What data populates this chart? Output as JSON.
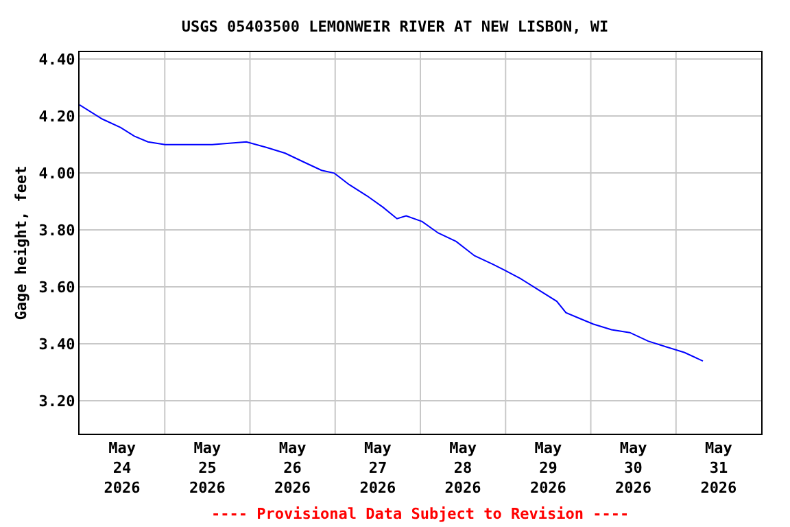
{
  "chart_data": {
    "type": "line",
    "title": "USGS 05403500 LEMONWEIR RIVER AT NEW LISBON, WI",
    "ylabel": "Gage height, feet",
    "annotations": [
      "---- Provisional Data Subject to Revision ----"
    ],
    "x": [
      "2026-05-24T00:00",
      "2026-05-24T06:25",
      "2026-05-24T11:35",
      "2026-05-24T15:25",
      "2026-05-24T19:15",
      "2026-05-25T00:05",
      "2026-05-25T13:20",
      "2026-05-25T23:00",
      "2026-05-26T04:45",
      "2026-05-26T09:55",
      "2026-05-26T15:00",
      "2026-05-26T20:10",
      "2026-05-26T23:45",
      "2026-05-27T03:55",
      "2026-05-27T09:00",
      "2026-05-27T13:30",
      "2026-05-27T17:25",
      "2026-05-27T20:00",
      "2026-05-28T00:30",
      "2026-05-28T05:00",
      "2026-05-28T10:05",
      "2026-05-28T15:15",
      "2026-05-28T20:25",
      "2026-05-28T23:35",
      "2026-05-29T04:10",
      "2026-05-29T09:15",
      "2026-05-29T14:25",
      "2026-05-29T17:00",
      "2026-05-29T20:50",
      "2026-05-30T00:40",
      "2026-05-30T05:50",
      "2026-05-30T11:00",
      "2026-05-30T16:10",
      "2026-05-30T21:15",
      "2026-05-31T02:25",
      "2026-05-31T07:35"
    ],
    "series": [
      {
        "color": "#0000ff",
        "values": [
          4.24,
          4.19,
          4.16,
          4.13,
          4.11,
          4.1,
          4.1,
          4.11,
          4.09,
          4.07,
          4.04,
          4.01,
          4.0,
          3.96,
          3.92,
          3.88,
          3.84,
          3.85,
          3.83,
          3.79,
          3.76,
          3.71,
          3.68,
          3.66,
          3.63,
          3.59,
          3.55,
          3.51,
          3.49,
          3.47,
          3.45,
          3.44,
          3.41,
          3.39,
          3.37,
          3.34
        ]
      }
    ],
    "xlim": [
      "2026-05-24T00:00",
      "2026-06-01T00:00"
    ],
    "xticks": [
      {
        "value": "2026-05-24T12:00",
        "label": "May\n24\n2026"
      },
      {
        "value": "2026-05-25T00:00",
        "label": null
      },
      {
        "value": "2026-05-25T12:00",
        "label": "May\n25\n2026"
      },
      {
        "value": "2026-05-26T00:00",
        "label": null
      },
      {
        "value": "2026-05-26T12:00",
        "label": "May\n26\n2026"
      },
      {
        "value": "2026-05-27T00:00",
        "label": null
      },
      {
        "value": "2026-05-27T12:00",
        "label": "May\n27\n2026"
      },
      {
        "value": "2026-05-28T00:00",
        "label": null
      },
      {
        "value": "2026-05-28T12:00",
        "label": "May\n28\n2026"
      },
      {
        "value": "2026-05-29T00:00",
        "label": null
      },
      {
        "value": "2026-05-29T12:00",
        "label": "May\n29\n2026"
      },
      {
        "value": "2026-05-30T00:00",
        "label": null
      },
      {
        "value": "2026-05-30T12:00",
        "label": "May\n30\n2026"
      },
      {
        "value": "2026-05-31T00:00",
        "label": null
      },
      {
        "value": "2026-05-31T12:00",
        "label": "May\n31\n2026"
      }
    ],
    "ylim": [
      3.085,
      4.425
    ],
    "yticks": [
      {
        "value": 3.2,
        "label": "3.20"
      },
      {
        "value": 3.4,
        "label": "3.40"
      },
      {
        "value": 3.6,
        "label": "3.60"
      },
      {
        "value": 3.8,
        "label": "3.80"
      },
      {
        "value": 4.0,
        "label": "4.00"
      },
      {
        "value": 4.2,
        "label": "4.20"
      },
      {
        "value": 4.4,
        "label": "4.40"
      }
    ],
    "grid": true
  }
}
